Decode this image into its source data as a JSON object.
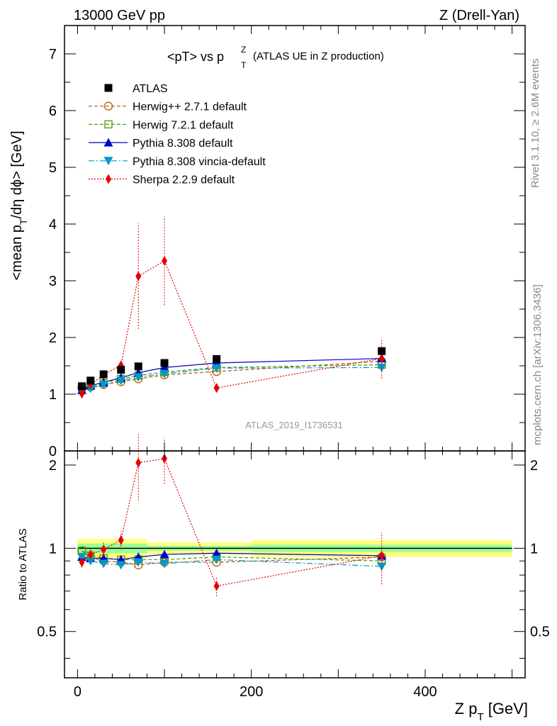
{
  "header": {
    "left": "13000 GeV pp",
    "right": "Z (Drell-Yan)"
  },
  "plot_title": {
    "main": "<pT> vs p",
    "sup": "Z",
    "sub": "T",
    "paren": "(ATLAS UE in Z production)"
  },
  "side_labels": {
    "rivet": "Rivet 3.1.10, ≥ 2.6M events",
    "mcplots": "mcplots.cern.ch [arXiv:1306.3436]"
  },
  "watermark": "ATLAS_2019_I1736531",
  "y_label_main": "<mean p_T/dη dϕ> [GeV]",
  "y_label_ratio": "Ratio to ATLAS",
  "x_label": "Z p_T [GeV]",
  "colors": {
    "ATLAS": "#000000",
    "Herwig++ 2.7.1 default": "#b35900",
    "Herwig 7.2.1 default": "#4d9900",
    "Pythia 8.308 default": "#0000cc",
    "Pythia 8.308 vincia-default": "#0099cc",
    "Sherpa 2.2.9 default": "#e60000",
    "band_inner": "#99ff99",
    "band_outer": "#ffff80"
  },
  "chart_data": [
    {
      "type": "scatter",
      "panel": "main",
      "xlim": [
        -15,
        515
      ],
      "ylim": [
        0,
        7.5
      ],
      "x_ticks": [
        0,
        200,
        400
      ],
      "y_ticks": [
        0,
        1,
        2,
        3,
        4,
        5,
        6,
        7
      ],
      "legend_position": "top-left",
      "series": [
        {
          "name": "ATLAS",
          "style": "square-filled",
          "x": [
            5,
            15,
            30,
            50,
            70,
            100,
            160,
            350
          ],
          "y": [
            1.14,
            1.24,
            1.35,
            1.43,
            1.49,
            1.55,
            1.62,
            1.76
          ]
        },
        {
          "name": "Herwig++ 2.7.1 default",
          "style": "circle-open-dashed",
          "x": [
            5,
            15,
            30,
            50,
            70,
            100,
            160,
            350
          ],
          "y": [
            1.12,
            1.13,
            1.17,
            1.22,
            1.27,
            1.34,
            1.4,
            1.58
          ]
        },
        {
          "name": "Herwig 7.2.1 default",
          "style": "square-open-dashed",
          "x": [
            5,
            15,
            30,
            50,
            70,
            100,
            160,
            350
          ],
          "y": [
            1.12,
            1.15,
            1.2,
            1.27,
            1.33,
            1.39,
            1.47,
            1.52
          ]
        },
        {
          "name": "Pythia 8.308 default",
          "style": "triangle-up-solid",
          "x": [
            5,
            15,
            30,
            50,
            70,
            100,
            160,
            350
          ],
          "y": [
            1.07,
            1.15,
            1.21,
            1.29,
            1.38,
            1.47,
            1.55,
            1.63
          ]
        },
        {
          "name": "Pythia 8.308 vincia-default",
          "style": "triangle-down-dashdot",
          "x": [
            5,
            15,
            30,
            50,
            70,
            100,
            160,
            350
          ],
          "y": [
            1.07,
            1.1,
            1.17,
            1.24,
            1.3,
            1.36,
            1.46,
            1.47
          ]
        },
        {
          "name": "Sherpa 2.2.9 default",
          "style": "diamond-dotted",
          "x": [
            5,
            15,
            30,
            50,
            70,
            100,
            160,
            350
          ],
          "y": [
            1.01,
            1.17,
            1.34,
            1.51,
            3.08,
            3.35,
            1.11,
            1.63
          ],
          "err": [
            0.05,
            0.06,
            0.08,
            0.1,
            0.93,
            0.78,
            0.08,
            0.35
          ]
        }
      ]
    },
    {
      "type": "line",
      "panel": "ratio",
      "xlim": [
        -15,
        515
      ],
      "ylim": [
        0.34,
        2.25
      ],
      "x_ticks": [
        0,
        200,
        400
      ],
      "y_ticks": [
        0.5,
        1,
        2
      ],
      "reference_band": [
        {
          "x0": 0,
          "x1": 80,
          "inner": 0.04,
          "outer": 0.08
        },
        {
          "x0": 80,
          "x1": 200,
          "inner": 0.02,
          "outer": 0.05
        },
        {
          "x0": 200,
          "x1": 500,
          "inner": 0.03,
          "outer": 0.07
        }
      ],
      "series": [
        {
          "name": "Herwig++ 2.7.1 default",
          "style": "circle-open-dashed",
          "x": [
            5,
            15,
            30,
            50,
            70,
            100,
            160,
            350
          ],
          "y": [
            0.98,
            0.92,
            0.9,
            0.89,
            0.87,
            0.89,
            0.89,
            0.93
          ]
        },
        {
          "name": "Herwig 7.2.1 default",
          "style": "square-open-dashed",
          "x": [
            5,
            15,
            30,
            50,
            70,
            100,
            160,
            350
          ],
          "y": [
            0.98,
            0.94,
            0.92,
            0.91,
            0.91,
            0.91,
            0.93,
            0.9
          ]
        },
        {
          "name": "Pythia 8.308 default",
          "style": "triangle-up-solid",
          "x": [
            5,
            15,
            30,
            50,
            70,
            100,
            160,
            350
          ],
          "y": [
            0.93,
            0.92,
            0.92,
            0.91,
            0.93,
            0.95,
            0.96,
            0.94
          ]
        },
        {
          "name": "Pythia 8.308 vincia-default",
          "style": "triangle-down-dashdot",
          "x": [
            5,
            15,
            30,
            50,
            70,
            100,
            160,
            350
          ],
          "y": [
            0.93,
            0.9,
            0.88,
            0.87,
            0.89,
            0.88,
            0.91,
            0.86
          ]
        },
        {
          "name": "Sherpa 2.2.9 default",
          "style": "diamond-dotted",
          "x": [
            5,
            15,
            30,
            50,
            70,
            100,
            160,
            350
          ],
          "y": [
            0.89,
            0.95,
            0.99,
            1.07,
            2.04,
            2.11,
            0.73,
            0.94
          ],
          "err": [
            0.04,
            0.05,
            0.07,
            0.08,
            0.55,
            0.4,
            0.06,
            0.2
          ]
        }
      ]
    }
  ]
}
